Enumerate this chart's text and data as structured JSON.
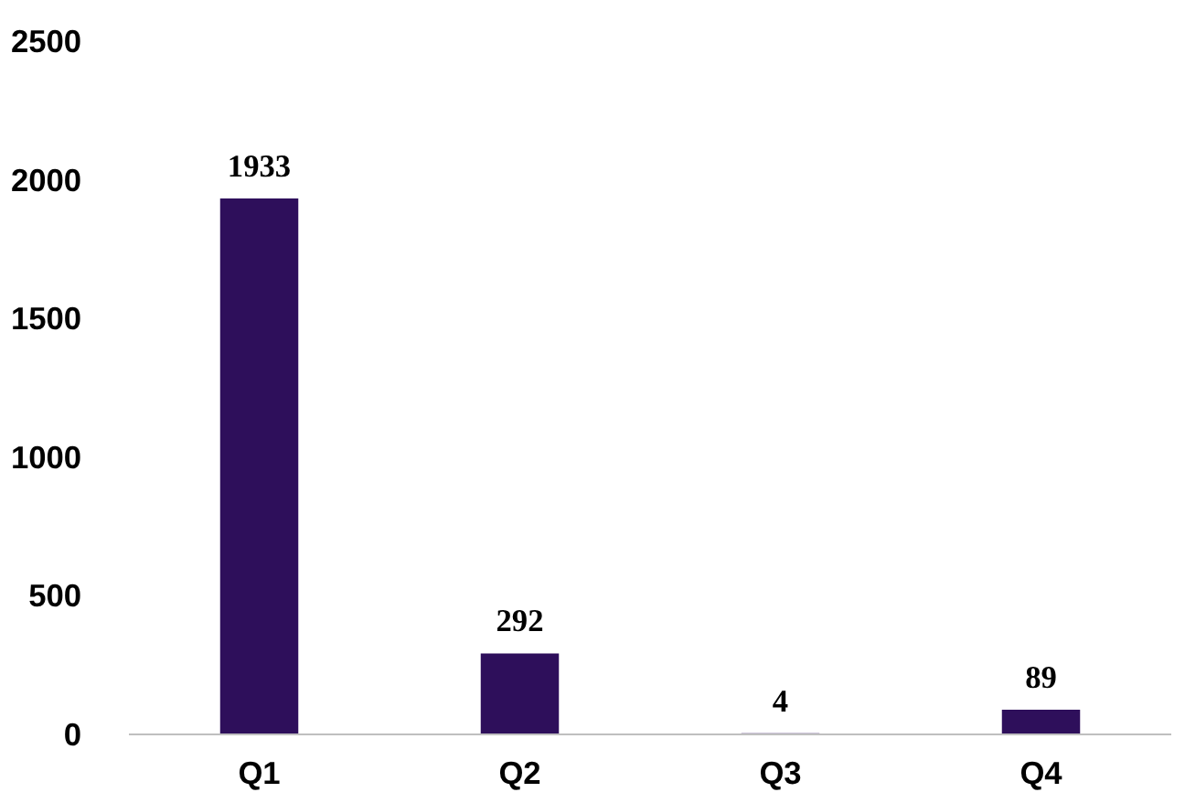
{
  "chart_data": {
    "type": "bar",
    "categories": [
      "Q1",
      "Q2",
      "Q3",
      "Q4"
    ],
    "values": [
      1933,
      292,
      4,
      89
    ],
    "color": "#2e0f5b",
    "ylim": [
      0,
      2500
    ],
    "yticks": [
      0,
      500,
      1000,
      1500,
      2000,
      2500
    ],
    "grid": false,
    "data_labels": true
  }
}
